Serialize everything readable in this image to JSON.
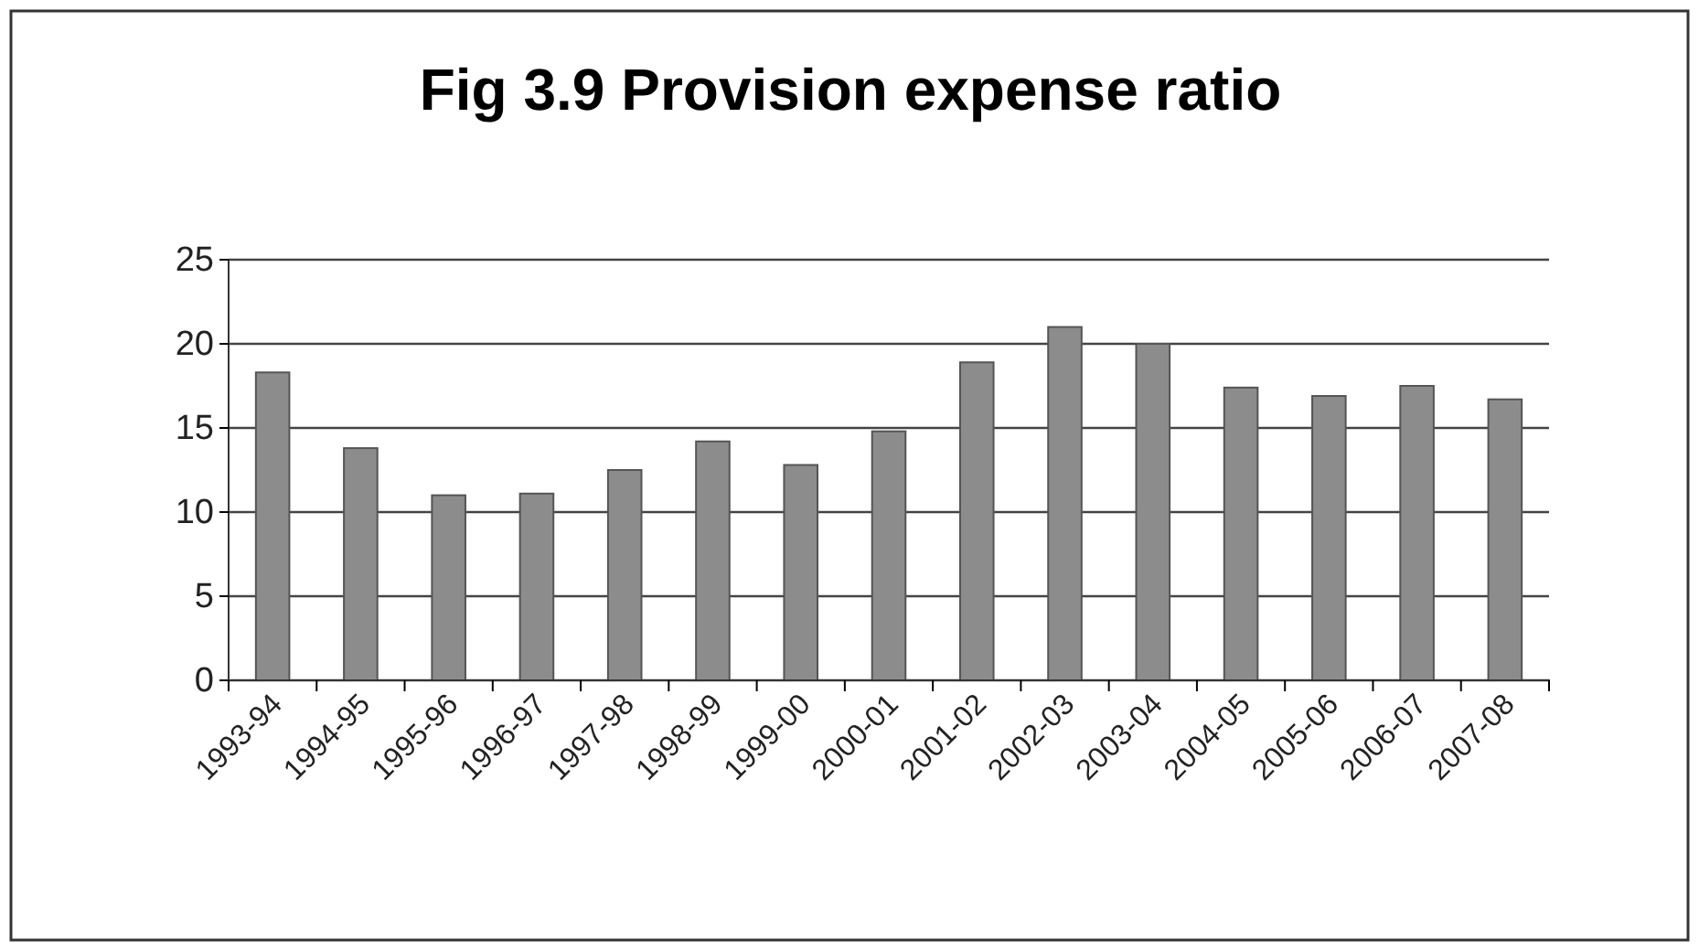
{
  "chart_data": {
    "type": "bar",
    "title": "Fig 3.9 Provision expense ratio",
    "categories": [
      "1993-94",
      "1994-95",
      "1995-96",
      "1996-97",
      "1997-98",
      "1998-99",
      "1999-00",
      "2000-01",
      "2001-02",
      "2002-03",
      "2003-04",
      "2004-05",
      "2005-06",
      "2006-07",
      "2007-08"
    ],
    "values": [
      18.3,
      13.8,
      11,
      11.1,
      12.5,
      14.2,
      12.8,
      14.8,
      18.9,
      21,
      20,
      17.4,
      16.9,
      17.5,
      16.7
    ],
    "color": "#8c8c8c",
    "ylim": [
      0,
      25
    ],
    "yticks": [
      0,
      5,
      10,
      15,
      20,
      25
    ],
    "grid": "y"
  }
}
